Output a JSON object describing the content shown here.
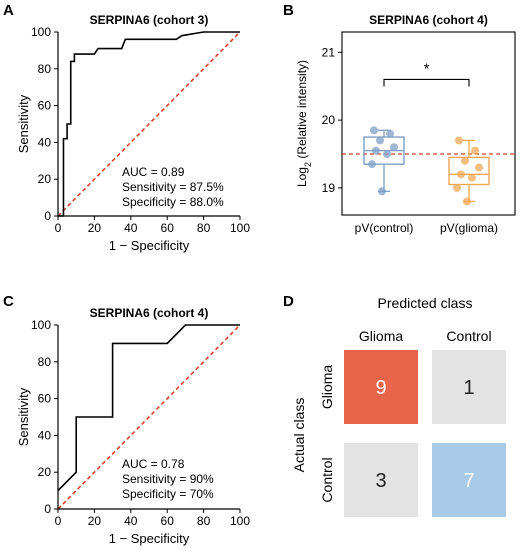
{
  "panels": {
    "A": {
      "letter": "A",
      "title": "SERPINA6 (cohort 3)"
    },
    "B": {
      "letter": "B",
      "title": "SERPINA6 (cohort 4)"
    },
    "C": {
      "letter": "C",
      "title": "SERPINA6 (cohort 4)"
    },
    "D": {
      "letter": "D"
    }
  },
  "colors": {
    "roc_line": "#000000",
    "reference_line": "#d9412b",
    "control": "#7f9fc4",
    "glioma": "#f0a855",
    "threshold_line": "#d9412b",
    "cm_high_glioma": "#e8644a",
    "cm_high_control": "#a9cbe8",
    "cm_low": "#e3e3e3"
  },
  "chart_data": [
    {
      "panel": "A",
      "type": "line",
      "title": "SERPINA6 (cohort 3)",
      "xlabel": "1 − Specificity",
      "ylabel": "Sensitivity",
      "xlim": [
        0,
        100
      ],
      "ylim": [
        0,
        100
      ],
      "xticks": [
        "0",
        "20",
        "40",
        "60",
        "80",
        "100"
      ],
      "yticks": [
        "0",
        "20",
        "40",
        "60",
        "80",
        "100"
      ],
      "series": [
        {
          "x": [
            0,
            3,
            3,
            5,
            5,
            7,
            7,
            9,
            9,
            12,
            20,
            22,
            35,
            37,
            65,
            68,
            80,
            100
          ],
          "y": [
            0,
            0,
            42,
            42,
            50,
            50,
            84,
            84,
            88,
            88,
            88,
            91,
            91,
            96,
            96,
            98,
            100,
            100
          ]
        }
      ],
      "reference_line": {
        "x": [
          0,
          100
        ],
        "y": [
          0,
          100
        ]
      },
      "annotations": [
        "AUC = 0.89",
        "Sensitivity = 87.5%",
        "Specificity = 88.0%"
      ]
    },
    {
      "panel": "B",
      "type": "scatter",
      "title": "SERPINA6 (cohort 4)",
      "ylabel_main": "Log",
      "ylabel_sub": "2",
      "ylabel_rest": " (Relative intensity)",
      "ylim": [
        18.6,
        21.3
      ],
      "yticks": [
        19,
        20,
        21
      ],
      "categories": [
        "pV(control)",
        "pV(glioma)"
      ],
      "series": [
        {
          "category": "pV(control)",
          "values": [
            19.85,
            19.8,
            19.7,
            19.6,
            19.55,
            19.5,
            19.35,
            18.95
          ],
          "box": {
            "q1": 19.35,
            "median": 19.55,
            "q3": 19.75,
            "whisker_low": 18.95,
            "whisker_high": 19.85
          }
        },
        {
          "category": "pV(glioma)",
          "values": [
            19.7,
            19.55,
            19.4,
            19.3,
            19.2,
            19.15,
            19.0,
            18.8
          ],
          "box": {
            "q1": 19.05,
            "median": 19.2,
            "q3": 19.45,
            "whisker_low": 18.8,
            "whisker_high": 19.7
          }
        }
      ],
      "threshold": 19.5,
      "significance": "*"
    },
    {
      "panel": "C",
      "type": "line",
      "title": "SERPINA6 (cohort 4)",
      "xlabel": "1 − Specificity",
      "ylabel": "Sensitivity",
      "xlim": [
        0,
        100
      ],
      "ylim": [
        0,
        100
      ],
      "xticks": [
        "0",
        "20",
        "40",
        "60",
        "80",
        "100"
      ],
      "yticks": [
        "0",
        "20",
        "40",
        "60",
        "80",
        "100"
      ],
      "series": [
        {
          "x": [
            0,
            10,
            10,
            20,
            30,
            30,
            40,
            60,
            70,
            100
          ],
          "y": [
            10,
            20,
            50,
            50,
            50,
            90,
            90,
            90,
            100,
            100
          ]
        }
      ],
      "reference_line": {
        "x": [
          0,
          100
        ],
        "y": [
          0,
          100
        ]
      },
      "annotations": [
        "AUC = 0.78",
        "Sensitivity = 90%",
        "Specificity = 70%"
      ]
    },
    {
      "panel": "D",
      "type": "heatmap",
      "x_title": "Predicted class",
      "y_title": "Actual class",
      "x_categories": [
        "Glioma",
        "Control"
      ],
      "y_categories": [
        "Glioma",
        "Control"
      ],
      "values": [
        [
          9,
          1
        ],
        [
          3,
          7
        ]
      ]
    }
  ]
}
